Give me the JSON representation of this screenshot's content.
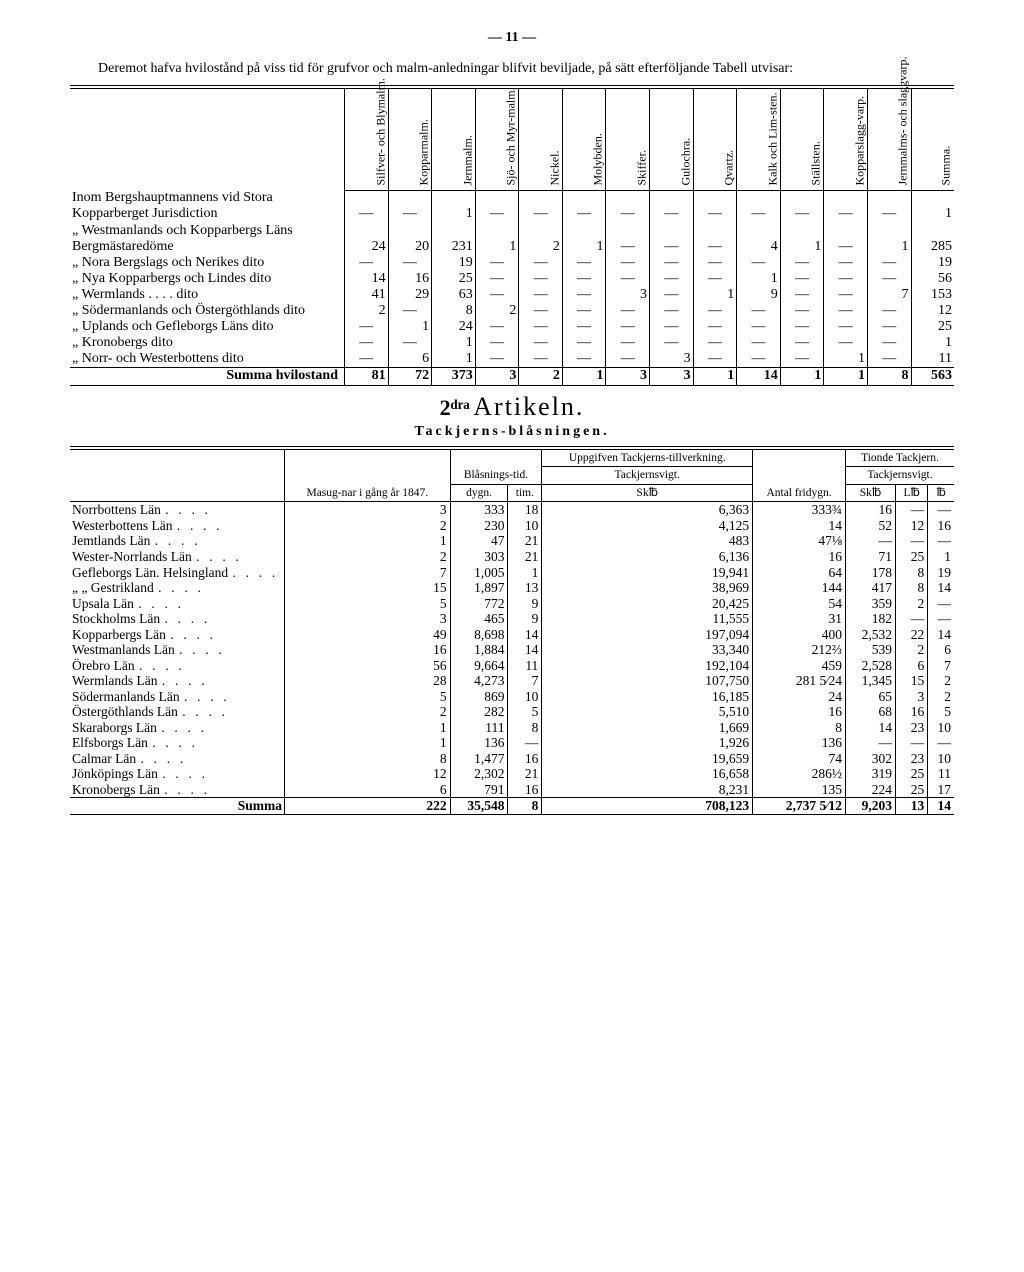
{
  "page_number": "— 11 —",
  "intro": "Deremot hafva hvilostånd på viss tid för grufvor och malm-anledningar blifvit beviljade, på sätt efterföljande Tabell utvisar:",
  "table1": {
    "columns": [
      "Silfver- och Blymalm.",
      "Kopparmalm.",
      "Jernmalm.",
      "Sjö- och Myr-malm.",
      "Nickel.",
      "Molybden.",
      "Skiffer.",
      "Gulochra.",
      "Qvartz.",
      "Kalk och Lim-sten.",
      "Ställsten.",
      "Kopparslagg-varp.",
      "Jernmalms- och slaggvarp.",
      "Summa."
    ],
    "rows": [
      {
        "label": "Inom Bergshauptmannens vid Stora Kopparberget Jurisdiction",
        "v": [
          "—",
          "—",
          "1",
          "—",
          "—",
          "—",
          "—",
          "—",
          "—",
          "—",
          "—",
          "—",
          "—",
          "1"
        ]
      },
      {
        "label": "„ Westmanlands och Kopparbergs Läns Bergmästaredöme",
        "v": [
          "24",
          "20",
          "231",
          "1",
          "2",
          "1",
          "—",
          "—",
          "—",
          "4",
          "1",
          "—",
          "1",
          "285"
        ]
      },
      {
        "label": "„ Nora Bergslags och Nerikes dito",
        "v": [
          "—",
          "—",
          "19",
          "—",
          "—",
          "—",
          "—",
          "—",
          "—",
          "—",
          "—",
          "—",
          "—",
          "19"
        ]
      },
      {
        "label": "„ Nya Kopparbergs och Lindes dito",
        "v": [
          "14",
          "16",
          "25",
          "—",
          "—",
          "—",
          "—",
          "—",
          "—",
          "1",
          "—",
          "—",
          "—",
          "56"
        ]
      },
      {
        "label": "„ Wermlands . . . . dito",
        "v": [
          "41",
          "29",
          "63",
          "—",
          "—",
          "—",
          "3",
          "—",
          "1",
          "9",
          "—",
          "—",
          "7",
          "153"
        ]
      },
      {
        "label": "„ Södermanlands och Östergöthlands dito",
        "v": [
          "2",
          "—",
          "8",
          "2",
          "—",
          "—",
          "—",
          "—",
          "—",
          "—",
          "—",
          "—",
          "—",
          "12"
        ]
      },
      {
        "label": "„ Uplands och Gefleborgs Läns dito",
        "v": [
          "—",
          "1",
          "24",
          "—",
          "—",
          "—",
          "—",
          "—",
          "—",
          "—",
          "—",
          "—",
          "—",
          "25"
        ]
      },
      {
        "label": "„ Kronobergs dito",
        "v": [
          "—",
          "—",
          "1",
          "—",
          "—",
          "—",
          "—",
          "—",
          "—",
          "—",
          "—",
          "—",
          "—",
          "1"
        ]
      },
      {
        "label": "„ Norr- och Westerbottens dito",
        "v": [
          "—",
          "6",
          "1",
          "—",
          "—",
          "—",
          "—",
          "3",
          "—",
          "—",
          "—",
          "1",
          "—",
          "11"
        ]
      }
    ],
    "sum_label": "Summa hvilostand",
    "sum": [
      "81",
      "72",
      "373",
      "3",
      "2",
      "1",
      "3",
      "3",
      "1",
      "14",
      "1",
      "1",
      "8",
      "563"
    ]
  },
  "artikel_num": "2ᵈʳᵃ",
  "artikel_title": "Artikeln.",
  "subheading": "Tackjerns-blåsningen.",
  "table2": {
    "head": {
      "c1": "Masug-nar i gång år 1847.",
      "c2": "Blåsnings-tid.",
      "c3": "Uppgifven Tackjerns-tillverkning.",
      "c4": "Antal fridygn.",
      "c5": "Tionde Tackjern.",
      "s3": "Tackjernsvigt.",
      "s5": "Tackjernsvigt.",
      "u2a": "dygn.",
      "u2b": "tim.",
      "u3": "Sk℔",
      "u5a": "Sk℔",
      "u5b": "L℔",
      "u5c": "℔"
    },
    "rows": [
      {
        "l": "Norrbottens Län",
        "v": [
          "3",
          "333",
          "18",
          "6,363",
          "333¾",
          "16",
          "—",
          "—"
        ]
      },
      {
        "l": "Westerbottens Län",
        "v": [
          "2",
          "230",
          "10",
          "4,125",
          "14",
          "52",
          "12",
          "16"
        ]
      },
      {
        "l": "Jemtlands Län",
        "v": [
          "1",
          "47",
          "21",
          "483",
          "47⅛",
          "—",
          "—",
          "—"
        ]
      },
      {
        "l": "Wester-Norrlands Län",
        "v": [
          "2",
          "303",
          "21",
          "6,136",
          "16",
          "71",
          "25",
          "1"
        ]
      },
      {
        "l": "Gefleborgs Län. Helsingland",
        "v": [
          "7",
          "1,005",
          "1",
          "19,941",
          "64",
          "178",
          "8",
          "19"
        ]
      },
      {
        "l": "„ „ Gestrikland",
        "v": [
          "15",
          "1,897",
          "13",
          "38,969",
          "144",
          "417",
          "8",
          "14"
        ]
      },
      {
        "l": "Upsala Län",
        "v": [
          "5",
          "772",
          "9",
          "20,425",
          "54",
          "359",
          "2",
          "—"
        ]
      },
      {
        "l": "Stockholms Län",
        "v": [
          "3",
          "465",
          "9",
          "11,555",
          "31",
          "182",
          "—",
          "—"
        ]
      },
      {
        "l": "Kopparbergs Län",
        "v": [
          "49",
          "8,698",
          "14",
          "197,094",
          "400",
          "2,532",
          "22",
          "14"
        ]
      },
      {
        "l": "Westmanlands Län",
        "v": [
          "16",
          "1,884",
          "14",
          "33,340",
          "212⅔",
          "539",
          "2",
          "6"
        ]
      },
      {
        "l": "Örebro Län",
        "v": [
          "56",
          "9,664",
          "11",
          "192,104",
          "459",
          "2,528",
          "6",
          "7"
        ]
      },
      {
        "l": "Wermlands Län",
        "v": [
          "28",
          "4,273",
          "7",
          "107,750",
          "281 5⁄24",
          "1,345",
          "15",
          "2"
        ]
      },
      {
        "l": "Södermanlands Län",
        "v": [
          "5",
          "869",
          "10",
          "16,185",
          "24",
          "65",
          "3",
          "2"
        ]
      },
      {
        "l": "Östergöthlands Län",
        "v": [
          "2",
          "282",
          "5",
          "5,510",
          "16",
          "68",
          "16",
          "5"
        ]
      },
      {
        "l": "Skaraborgs Län",
        "v": [
          "1",
          "111",
          "8",
          "1,669",
          "8",
          "14",
          "23",
          "10"
        ]
      },
      {
        "l": "Elfsborgs Län",
        "v": [
          "1",
          "136",
          "—",
          "1,926",
          "136",
          "—",
          "—",
          "—"
        ]
      },
      {
        "l": "Calmar Län",
        "v": [
          "8",
          "1,477",
          "16",
          "19,659",
          "74",
          "302",
          "23",
          "10"
        ]
      },
      {
        "l": "Jönköpings Län",
        "v": [
          "12",
          "2,302",
          "21",
          "16,658",
          "286½",
          "319",
          "25",
          "11"
        ]
      },
      {
        "l": "Kronobergs Län",
        "v": [
          "6",
          "791",
          "16",
          "8,231",
          "135",
          "224",
          "25",
          "17"
        ]
      }
    ],
    "sum_label": "Summa",
    "sum": [
      "222",
      "35,548",
      "8",
      "708,123",
      "2,737 5⁄12",
      "9,203",
      "13",
      "14"
    ]
  }
}
